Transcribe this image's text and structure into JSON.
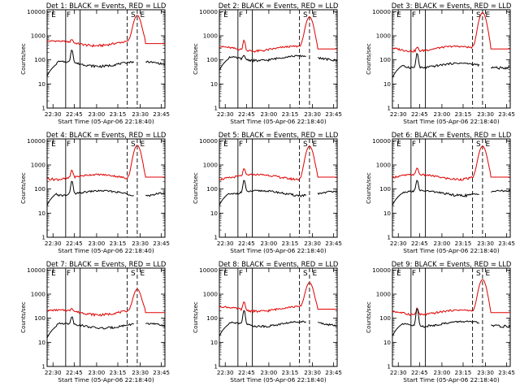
{
  "chart_data": {
    "type": "line",
    "shared": {
      "xlabel": "Start Time (05-Apr-06 22:18:40)",
      "ylabel": "Counts/sec",
      "x_range_minutes": [
        22.5,
        78.0
      ],
      "x_ticks": [
        {
          "value": 30,
          "label": "22:30"
        },
        {
          "value": 45,
          "label": "22:45"
        },
        {
          "value": 60,
          "label": "23:00"
        },
        {
          "value": 75,
          "label": "23:15"
        },
        {
          "value": 90,
          "label": "23:30"
        },
        {
          "value": 105,
          "label": "23:45"
        }
      ],
      "y_scale": "log",
      "y_range": [
        1,
        12000
      ],
      "y_ticks": [
        {
          "value": 1,
          "label": "1"
        },
        {
          "value": 10,
          "label": "10"
        },
        {
          "value": 100,
          "label": "100"
        },
        {
          "value": 1000,
          "label": "1000"
        },
        {
          "value": 10000,
          "label": "10000"
        }
      ],
      "series_colors": {
        "events": "#000000",
        "lld": "#e00000"
      },
      "letters": {
        "E": "E",
        "F": "F",
        "S": "S"
      }
    },
    "panels": [
      {
        "title": "Det 1: BLACK = Events, RED = LLD",
        "events_base": 70,
        "lld_base": 500,
        "events_peak": 260,
        "lld_peak": 700,
        "flare_peak": 7000,
        "solid_lines": [
          0.315,
          0.56
        ],
        "dashed_lines": [
          0.58,
          0.72
        ]
      },
      {
        "title": "Det 2: BLACK = Events, RED = LLD",
        "events_base": 120,
        "lld_base": 300,
        "events_peak": 160,
        "lld_peak": 700,
        "flare_peak": 6000,
        "solid_lines": [
          0.315,
          0.56
        ],
        "dashed_lines": [
          0.58,
          0.72
        ]
      },
      {
        "title": "Det 3: BLACK = Events, RED = LLD",
        "events_base": 60,
        "lld_base": 300,
        "events_peak": 200,
        "lld_peak": 400,
        "flare_peak": 9000,
        "solid_lines": [
          0.315,
          0.56
        ],
        "dashed_lines": [
          0.58,
          0.72
        ]
      },
      {
        "title": "Det 4: BLACK = Events, RED = LLD",
        "events_base": 70,
        "lld_base": 330,
        "events_peak": 230,
        "lld_peak": 650,
        "flare_peak": 6500,
        "solid_lines": [
          0.315,
          0.56
        ],
        "dashed_lines": [
          0.58,
          0.72
        ]
      },
      {
        "title": "Det 5: BLACK = Events, RED = LLD",
        "events_base": 70,
        "lld_base": 330,
        "events_peak": 230,
        "lld_peak": 650,
        "flare_peak": 6000,
        "solid_lines": [
          0.315,
          0.56
        ],
        "dashed_lines": [
          0.58,
          0.72
        ]
      },
      {
        "title": "Det 6: BLACK = Events, RED = LLD",
        "events_base": 70,
        "lld_base": 330,
        "events_peak": 220,
        "lld_peak": 700,
        "flare_peak": 6000,
        "solid_lines": [
          0.315,
          0.56
        ],
        "dashed_lines": [
          0.58,
          0.72
        ]
      },
      {
        "title": "Det 7: BLACK = Events, RED = LLD",
        "events_base": 50,
        "lld_base": 180,
        "events_peak": 110,
        "lld_peak": 250,
        "flare_peak": 1600,
        "solid_lines": [
          0.315,
          0.56
        ],
        "dashed_lines": [
          0.58,
          0.72
        ]
      },
      {
        "title": "Det 8: BLACK = Events, RED = LLD",
        "events_base": 60,
        "lld_base": 250,
        "events_peak": 220,
        "lld_peak": 500,
        "flare_peak": 3000,
        "solid_lines": [
          0.315,
          0.56
        ],
        "dashed_lines": [
          0.58,
          0.72
        ]
      },
      {
        "title": "Det 9: BLACK = Events, RED = LLD",
        "events_base": 60,
        "lld_base": 180,
        "events_peak": 270,
        "lld_peak": 300,
        "flare_peak": 4000,
        "solid_lines": [
          0.315,
          0.56
        ],
        "dashed_lines": [
          0.58,
          0.72
        ]
      }
    ]
  }
}
